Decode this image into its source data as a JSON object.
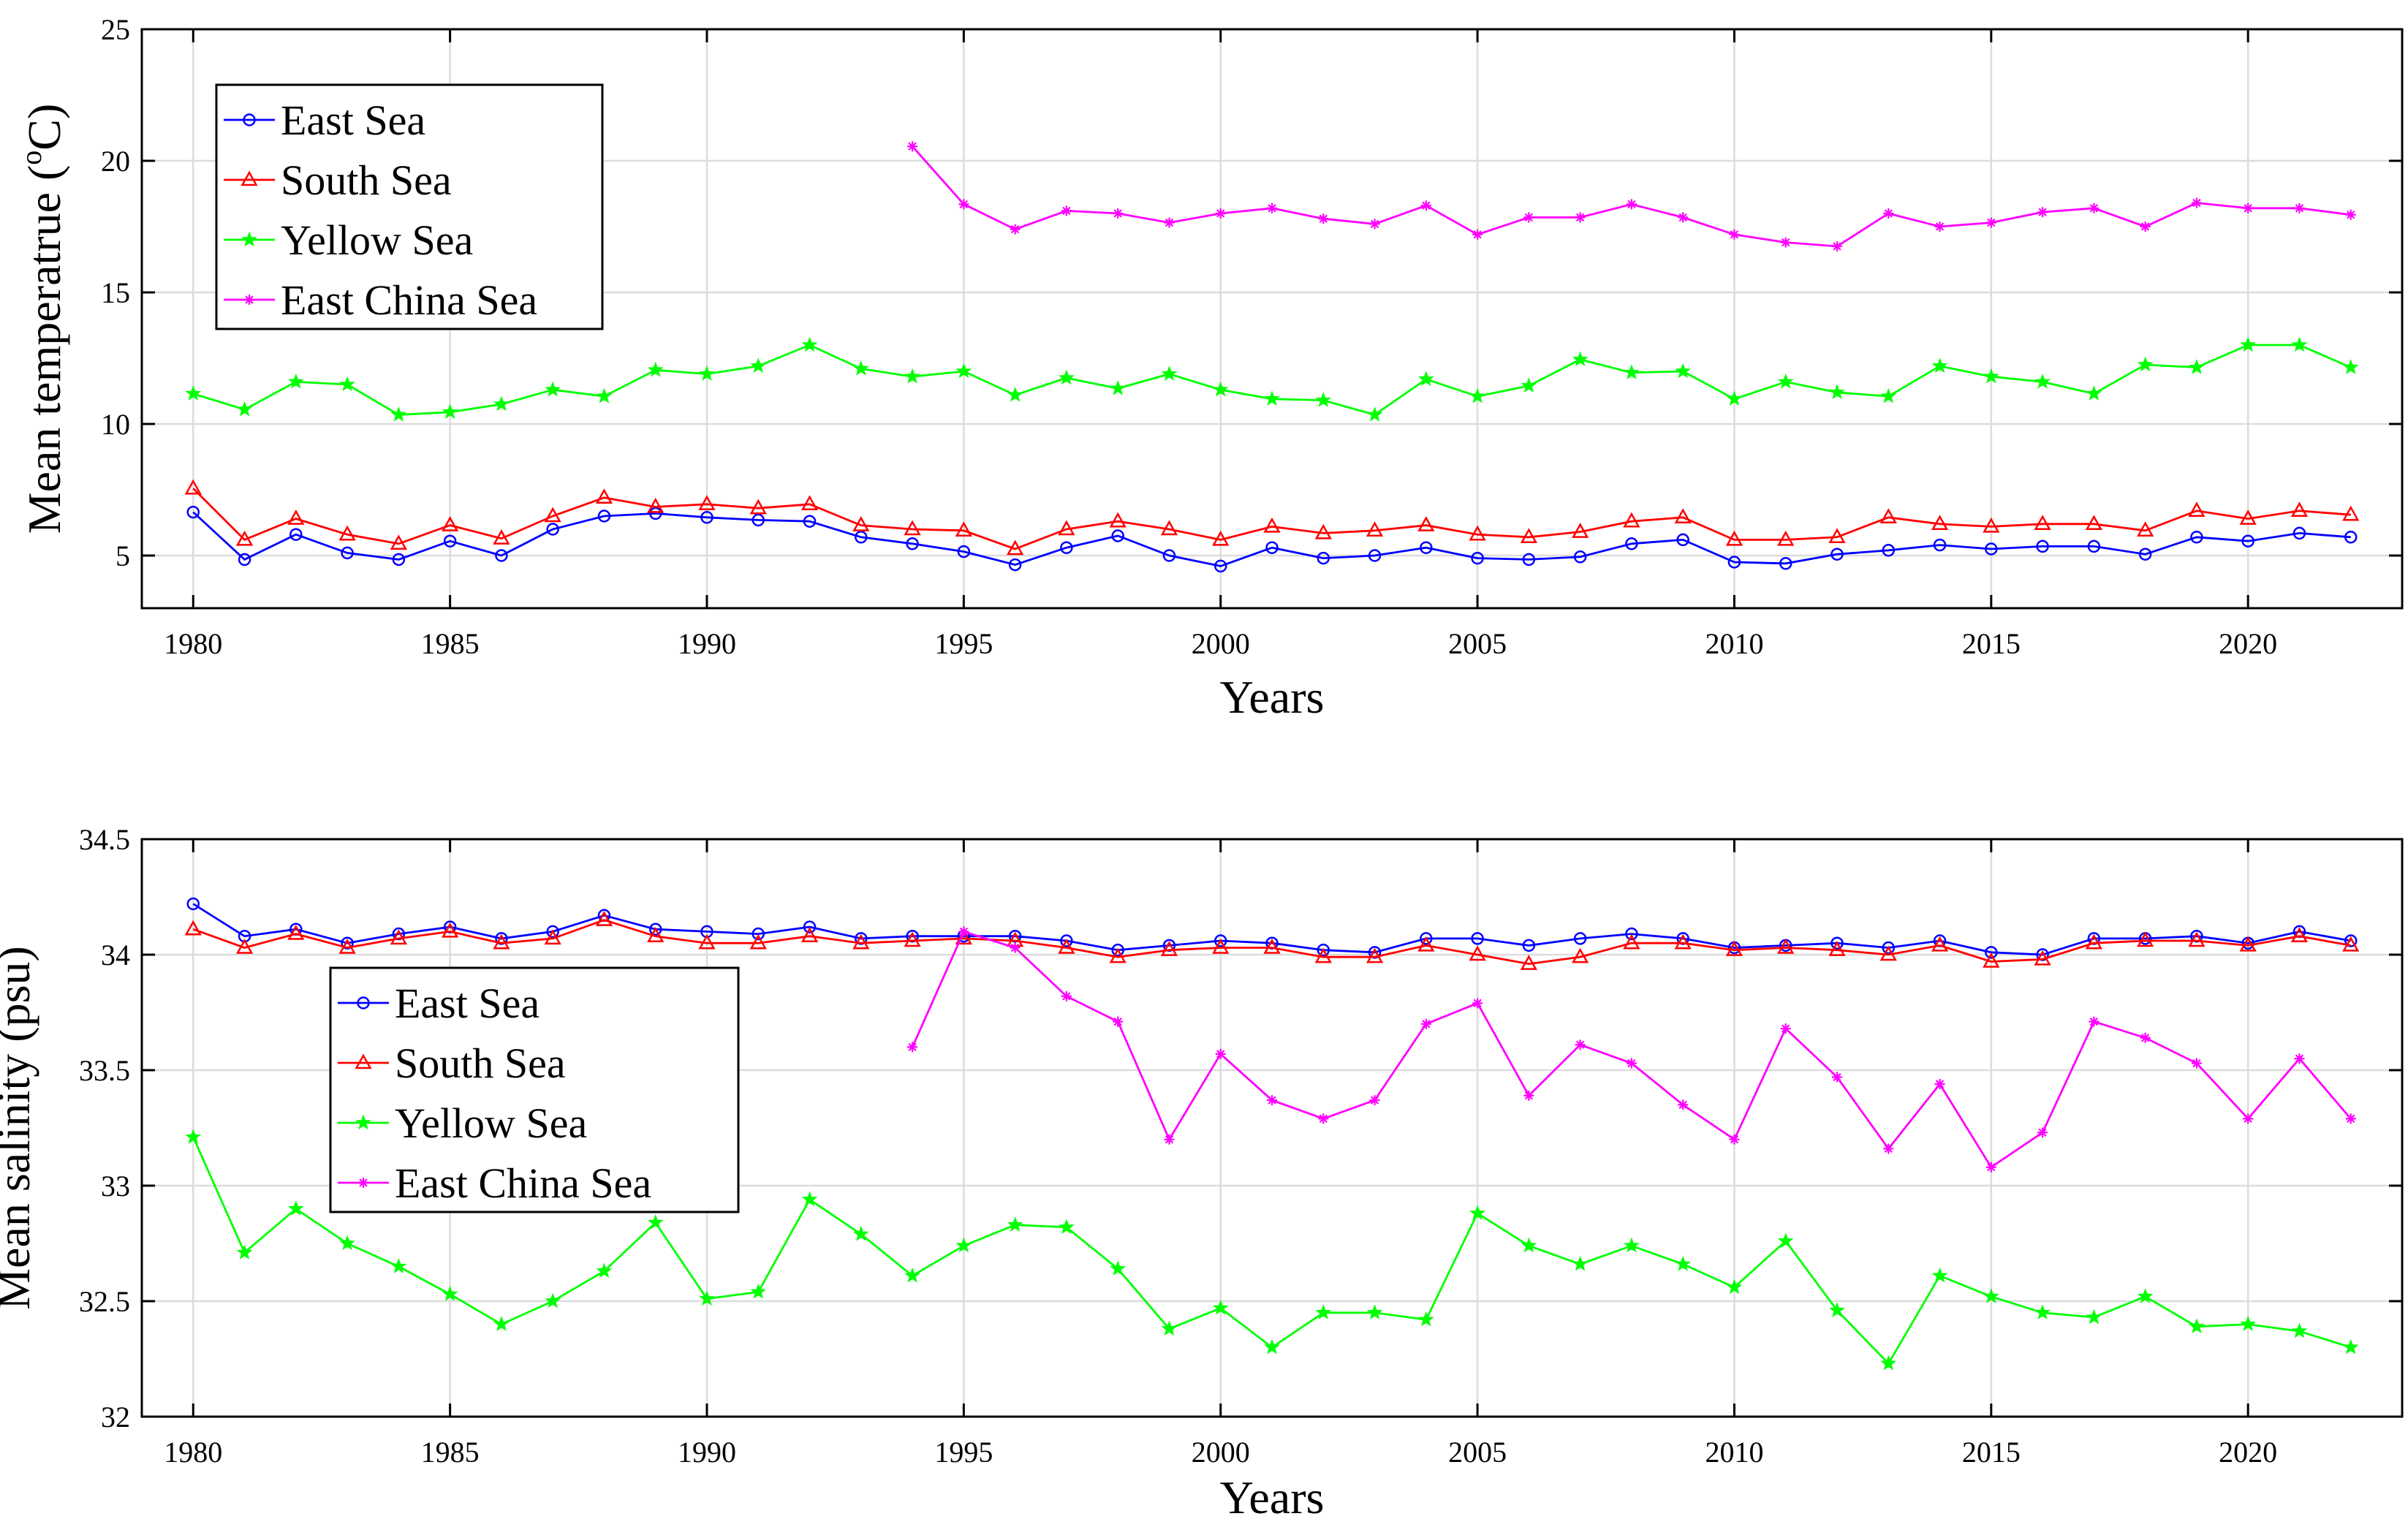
{
  "chart_data": [
    {
      "type": "line",
      "xlabel": "Years",
      "ylabel": "Mean temperatrue (",
      "ylabel_sup": "o",
      "ylabel_unit": "C)",
      "xlim": [
        1979,
        2023
      ],
      "ylim": [
        3,
        25
      ],
      "xticks": [
        1980,
        1985,
        1990,
        1995,
        2000,
        2005,
        2010,
        2015,
        2020
      ],
      "yticks": [
        5,
        10,
        15,
        20,
        25
      ],
      "grid": true,
      "legend_position": "top-left",
      "series": [
        {
          "name": "East Sea",
          "color": "#0000ff",
          "marker": "circle",
          "start": 1980,
          "values": [
            6.65,
            4.85,
            5.8,
            5.1,
            4.85,
            5.55,
            5.0,
            6.0,
            6.5,
            6.6,
            6.45,
            6.35,
            6.3,
            5.7,
            5.45,
            5.15,
            4.65,
            5.3,
            5.75,
            5.0,
            4.6,
            5.3,
            4.9,
            5.0,
            5.3,
            4.9,
            4.85,
            4.95,
            5.45,
            5.6,
            4.75,
            4.7,
            5.05,
            5.2,
            5.4,
            5.25,
            5.35,
            5.35,
            5.05,
            5.7,
            5.55,
            5.85,
            5.7
          ]
        },
        {
          "name": "South Sea",
          "color": "#ff0000",
          "marker": "triangle",
          "start": 1980,
          "values": [
            7.55,
            5.6,
            6.4,
            5.8,
            5.45,
            6.15,
            5.65,
            6.5,
            7.2,
            6.85,
            6.95,
            6.8,
            6.95,
            6.15,
            6.0,
            5.95,
            5.25,
            6.0,
            6.3,
            6.0,
            5.6,
            6.1,
            5.85,
            5.95,
            6.15,
            5.8,
            5.7,
            5.9,
            6.3,
            6.45,
            5.6,
            5.6,
            5.7,
            6.45,
            6.2,
            6.1,
            6.2,
            6.2,
            5.95,
            6.7,
            6.4,
            6.7,
            6.55
          ]
        },
        {
          "name": "Yellow Sea",
          "color": "#00ff00",
          "marker": "star",
          "start": 1980,
          "values": [
            11.15,
            10.55,
            11.6,
            11.5,
            10.35,
            10.45,
            10.75,
            11.3,
            11.05,
            12.05,
            11.9,
            12.2,
            13.0,
            12.1,
            11.8,
            12.0,
            11.1,
            11.75,
            11.35,
            11.9,
            11.3,
            10.95,
            10.9,
            10.35,
            11.7,
            11.05,
            11.45,
            12.45,
            11.95,
            12.0,
            10.95,
            11.6,
            11.2,
            11.05,
            12.2,
            11.8,
            11.6,
            11.15,
            12.25,
            12.15,
            13.0,
            13.0,
            12.15
          ]
        },
        {
          "name": "East China Sea",
          "color": "#ff00ff",
          "marker": "asterisk",
          "start": 1994,
          "values": [
            20.55,
            18.35,
            17.4,
            18.1,
            18.0,
            17.65,
            18.0,
            18.2,
            17.8,
            17.6,
            18.3,
            17.2,
            17.85,
            17.85,
            18.35,
            17.85,
            17.2,
            16.9,
            16.75,
            18.0,
            17.5,
            17.65,
            18.05,
            18.2,
            17.5,
            18.4,
            18.2,
            18.2,
            17.95
          ]
        }
      ]
    },
    {
      "type": "line",
      "xlabel": "Years",
      "ylabel": "Mean salinity (psu)",
      "xlim": [
        1979,
        2023
      ],
      "ylim": [
        32,
        34.5
      ],
      "xticks": [
        1980,
        1985,
        1990,
        1995,
        2000,
        2005,
        2010,
        2015,
        2020
      ],
      "yticks": [
        32,
        32.5,
        33,
        33.5,
        34,
        34.5
      ],
      "grid": true,
      "legend_position": "center-left",
      "series": [
        {
          "name": "East Sea",
          "color": "#0000ff",
          "marker": "circle",
          "start": 1980,
          "values": [
            34.22,
            34.08,
            34.11,
            34.05,
            34.09,
            34.12,
            34.07,
            34.1,
            34.17,
            34.11,
            34.1,
            34.09,
            34.12,
            34.07,
            34.08,
            34.08,
            34.08,
            34.06,
            34.02,
            34.04,
            34.06,
            34.05,
            34.02,
            34.01,
            34.07,
            34.07,
            34.04,
            34.07,
            34.09,
            34.07,
            34.03,
            34.04,
            34.05,
            34.03,
            34.06,
            34.01,
            34.0,
            34.07,
            34.07,
            34.08,
            34.05,
            34.1,
            34.06
          ]
        },
        {
          "name": "South Sea",
          "color": "#ff0000",
          "marker": "triangle",
          "start": 1980,
          "values": [
            34.11,
            34.03,
            34.09,
            34.03,
            34.07,
            34.1,
            34.05,
            34.07,
            34.15,
            34.08,
            34.05,
            34.05,
            34.08,
            34.05,
            34.06,
            34.07,
            34.06,
            34.03,
            33.99,
            34.02,
            34.03,
            34.03,
            33.99,
            33.99,
            34.04,
            34.0,
            33.96,
            33.99,
            34.05,
            34.05,
            34.02,
            34.03,
            34.02,
            34.0,
            34.04,
            33.97,
            33.98,
            34.05,
            34.06,
            34.06,
            34.04,
            34.08,
            34.04
          ]
        },
        {
          "name": "Yellow Sea",
          "color": "#00ff00",
          "marker": "star",
          "start": 1980,
          "values": [
            33.21,
            32.71,
            32.9,
            32.75,
            32.65,
            32.53,
            32.4,
            32.5,
            32.63,
            32.84,
            32.51,
            32.54,
            32.94,
            32.79,
            32.61,
            32.74,
            32.83,
            32.82,
            32.64,
            32.38,
            32.47,
            32.3,
            32.45,
            32.45,
            32.42,
            32.88,
            32.74,
            32.66,
            32.74,
            32.66,
            32.56,
            32.76,
            32.46,
            32.23,
            32.61,
            32.52,
            32.45,
            32.43,
            32.52,
            32.39,
            32.4,
            32.37,
            32.3
          ]
        },
        {
          "name": "East China Sea",
          "color": "#ff00ff",
          "marker": "asterisk",
          "start": 1994,
          "values": [
            33.6,
            34.1,
            34.03,
            33.82,
            33.71,
            33.2,
            33.57,
            33.37,
            33.29,
            33.37,
            33.7,
            33.79,
            33.39,
            33.61,
            33.53,
            33.35,
            33.2,
            33.68,
            33.47,
            33.16,
            33.44,
            33.08,
            33.23,
            33.71,
            33.64,
            33.53,
            33.29,
            33.55,
            33.29
          ]
        }
      ]
    }
  ]
}
